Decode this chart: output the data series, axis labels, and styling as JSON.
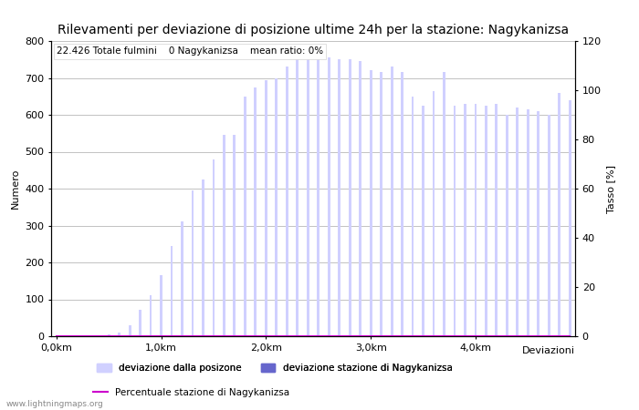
{
  "title": "Rilevamenti per deviazione di posizione ultime 24h per la stazione: Nagykanizsa",
  "subtitle": "22.426 Totale fulmini    0 Nagykanizsa    mean ratio: 0%",
  "ylabel_left": "Numero",
  "ylabel_right": "Tasso [%]",
  "xlabel": "Deviazioni",
  "watermark": "www.lightningmaps.org",
  "ylim_left": [
    0,
    800
  ],
  "ylim_right": [
    0,
    120
  ],
  "yticks_left": [
    0,
    100,
    200,
    300,
    400,
    500,
    600,
    700,
    800
  ],
  "yticks_right": [
    0,
    20,
    40,
    60,
    80,
    100,
    120
  ],
  "xtick_labels": [
    "0,0km",
    "1,0km",
    "2,0km",
    "3,0km",
    "4,0km"
  ],
  "xtick_positions": [
    0,
    10,
    20,
    30,
    40
  ],
  "bar_color_light": "#d0d0ff",
  "bar_color_dark": "#6666cc",
  "line_color": "#cc00cc",
  "bar_width": 0.25,
  "legend1_label": "deviazione dalla posizone",
  "legend2_label": "deviazione stazione di Nagykanizsa",
  "legend3_label": "Percentuale stazione di Nagykanizsa",
  "bar_values": [
    0,
    0,
    0,
    0,
    0,
    4,
    10,
    30,
    72,
    110,
    165,
    245,
    310,
    395,
    425,
    480,
    545,
    545,
    650,
    675,
    695,
    700,
    730,
    750,
    755,
    760,
    755,
    750,
    750,
    745,
    720,
    715,
    730,
    715,
    650,
    625,
    665,
    715,
    625,
    630,
    630,
    625,
    630,
    600,
    620,
    615,
    610,
    600,
    660,
    640
  ],
  "station_bar_values": [
    0,
    0,
    0,
    0,
    0,
    0,
    0,
    0,
    0,
    0,
    0,
    0,
    0,
    0,
    0,
    0,
    0,
    0,
    0,
    0,
    0,
    0,
    0,
    0,
    0,
    0,
    0,
    0,
    0,
    0,
    0,
    0,
    0,
    0,
    0,
    0,
    0,
    0,
    0,
    0,
    0,
    0,
    0,
    0,
    0,
    0,
    0,
    0,
    0,
    0
  ],
  "percentage_values": [
    0,
    0,
    0,
    0,
    0,
    0,
    0,
    0,
    0,
    0,
    0,
    0,
    0,
    0,
    0,
    0,
    0,
    0,
    0,
    0,
    0,
    0,
    0,
    0,
    0,
    0,
    0,
    0,
    0,
    0,
    0,
    0,
    0,
    0,
    0,
    0,
    0,
    0,
    0,
    0,
    0,
    0,
    0,
    0,
    0,
    0,
    0,
    0,
    0,
    0
  ],
  "background_color": "#ffffff",
  "grid_color": "#aaaaaa",
  "title_fontsize": 10,
  "axis_fontsize": 8,
  "tick_fontsize": 8,
  "subtitle_fontsize": 7.5
}
